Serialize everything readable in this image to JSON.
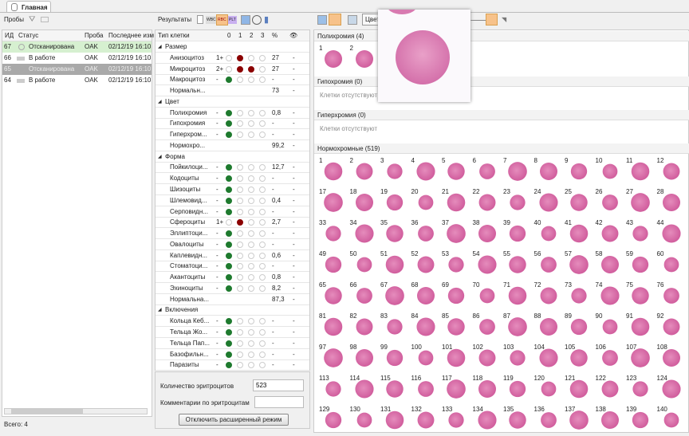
{
  "tab": {
    "title": "Главная"
  },
  "samples": {
    "label": "Пробы",
    "columns": [
      "ИД",
      "Статус",
      "Проба",
      "Последнее изм"
    ],
    "rows": [
      {
        "id": "67",
        "status": "Отсканирована",
        "type": "OAK",
        "date": "02/12/19 16:10",
        "state": "scanned-selected"
      },
      {
        "id": "66",
        "status": "В работе",
        "type": "OAK",
        "date": "02/12/19 16:10",
        "state": "in-progress"
      },
      {
        "id": "65",
        "status": "Отсканирована",
        "type": "OAK",
        "date": "02/12/19 16:10",
        "state": "scanned-highlighted"
      },
      {
        "id": "64",
        "status": "В работе",
        "type": "OAK",
        "date": "02/12/19 16:10",
        "state": "in-progress"
      }
    ],
    "total": "Всего: 4"
  },
  "results": {
    "label": "Результаты",
    "toolbar": [
      "WBC",
      "RBC",
      "PLT"
    ],
    "active_tab": "RBC",
    "columns": [
      "Тип клетки",
      "0",
      "1",
      "2",
      "3",
      "%"
    ],
    "groups": [
      {
        "name": "Размер",
        "items": [
          {
            "name": "Анизоцитоз",
            "grade": "1+",
            "level": 1,
            "pct": "27",
            "v": "-"
          },
          {
            "name": "Микроцитоз",
            "grade": "2+",
            "level": 2,
            "pct": "27",
            "v": "-"
          },
          {
            "name": "Макроцитоз",
            "grade": "-",
            "level": 0,
            "pct": "-",
            "v": "-"
          },
          {
            "name": "Нормальн...",
            "grade": "",
            "level": null,
            "pct": "73",
            "v": "-"
          }
        ]
      },
      {
        "name": "Цвет",
        "items": [
          {
            "name": "Полихромия",
            "grade": "-",
            "level": 0,
            "pct": "0,8",
            "v": "-"
          },
          {
            "name": "Гипохромия",
            "grade": "-",
            "level": 0,
            "pct": "-",
            "v": "-"
          },
          {
            "name": "Гиперхром...",
            "grade": "-",
            "level": 0,
            "pct": "-",
            "v": "-"
          },
          {
            "name": "Нормохро...",
            "grade": "",
            "level": null,
            "pct": "99,2",
            "v": "-"
          }
        ]
      },
      {
        "name": "Форма",
        "items": [
          {
            "name": "Пойкилоци...",
            "grade": "-",
            "level": 0,
            "pct": "12,7",
            "v": "-"
          },
          {
            "name": "Кодоциты",
            "grade": "-",
            "level": 0,
            "pct": "-",
            "v": "-"
          },
          {
            "name": "Шизоциты",
            "grade": "-",
            "level": 0,
            "pct": "-",
            "v": "-"
          },
          {
            "name": "Шлемовид...",
            "grade": "-",
            "level": 0,
            "pct": "0,4",
            "v": "-"
          },
          {
            "name": "Серповидн...",
            "grade": "-",
            "level": 0,
            "pct": "-",
            "v": "-"
          },
          {
            "name": "Сфероциты",
            "grade": "1+",
            "level": 1,
            "pct": "2,7",
            "v": "-"
          },
          {
            "name": "Эллиптоци...",
            "grade": "-",
            "level": 0,
            "pct": "-",
            "v": "-"
          },
          {
            "name": "Овалоциты",
            "grade": "-",
            "level": 0,
            "pct": "-",
            "v": "-"
          },
          {
            "name": "Каплевидн...",
            "grade": "-",
            "level": 0,
            "pct": "0,6",
            "v": "-"
          },
          {
            "name": "Стоматоци...",
            "grade": "-",
            "level": 0,
            "pct": "-",
            "v": "-"
          },
          {
            "name": "Акантоциты",
            "grade": "-",
            "level": 0,
            "pct": "0,8",
            "v": "-"
          },
          {
            "name": "Эхиноциты",
            "grade": "-",
            "level": 0,
            "pct": "8,2",
            "v": "-"
          },
          {
            "name": "Нормальна...",
            "grade": "",
            "level": null,
            "pct": "87,3",
            "v": "-"
          }
        ]
      },
      {
        "name": "Включения",
        "items": [
          {
            "name": "Кольца Кеб...",
            "grade": "-",
            "level": 0,
            "pct": "-",
            "v": "-"
          },
          {
            "name": "Тельца Жо...",
            "grade": "-",
            "level": 0,
            "pct": "-",
            "v": "-"
          },
          {
            "name": "Тельца Пап...",
            "grade": "-",
            "level": 0,
            "pct": "-",
            "v": "-"
          },
          {
            "name": "Базофильн...",
            "grade": "-",
            "level": 0,
            "pct": "-",
            "v": "-"
          },
          {
            "name": "Паразиты",
            "grade": "-",
            "level": 0,
            "pct": "-",
            "v": "-"
          }
        ]
      }
    ],
    "rbc_count_label": "Количество эритроцитов",
    "rbc_count": "523",
    "comment_label": "Комментарии по эритроцитам",
    "comment": "",
    "toggle_button": "Отключить расширенный режим"
  },
  "gallery": {
    "filter": "Цвет",
    "sections": [
      {
        "title": "Полихромия (4)",
        "cells": [
          "1",
          "2"
        ]
      },
      {
        "title": "Гипохромия (0)",
        "empty": "Клетки отсутствуют"
      },
      {
        "title": "Гиперхромия (0)",
        "empty": "Клетки отсутствуют"
      },
      {
        "title": "Нормохромные (519)",
        "rows": [
          1,
          17,
          33,
          49,
          65,
          81,
          97,
          113,
          129
        ]
      }
    ]
  }
}
